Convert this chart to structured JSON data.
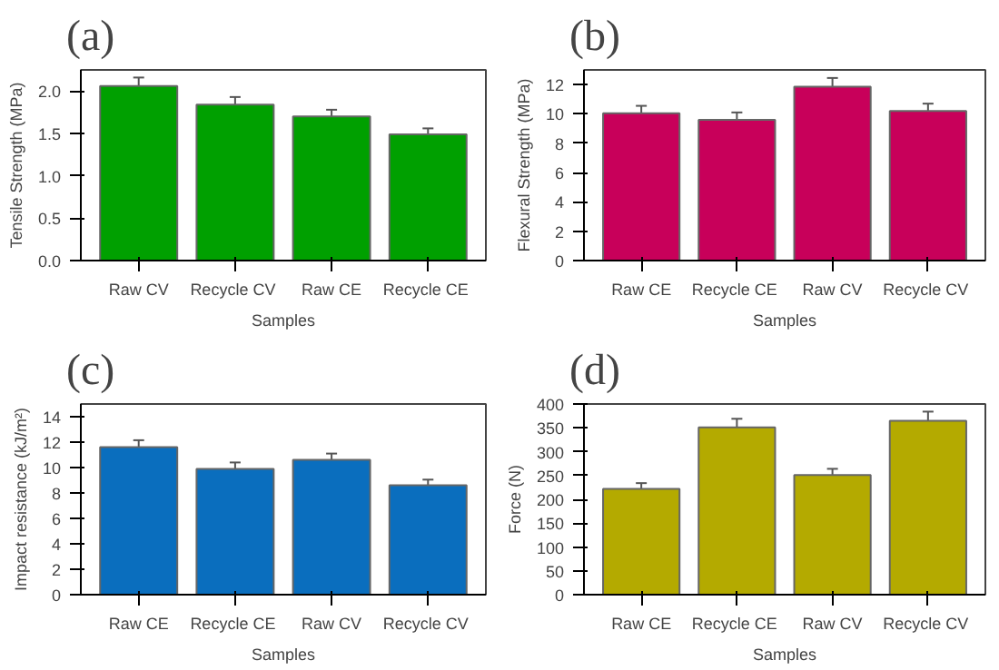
{
  "chart_data": [
    {
      "type": "bar",
      "title": "(a)",
      "xlabel": "Samples",
      "ylabel": "Tensile Strength (MPa)",
      "categories": [
        "Raw CV",
        "Recycle  CV",
        "Raw CE",
        "Recycle  CE"
      ],
      "values": [
        2.06,
        1.84,
        1.7,
        1.49
      ],
      "errors": [
        0.1,
        0.09,
        0.08,
        0.07
      ],
      "color": "#00a000",
      "ylim": [
        0,
        2.25
      ],
      "yticks": [
        {
          "value": 0,
          "label": "0.0"
        },
        0.5,
        {
          "value": 1,
          "label": "1.0"
        },
        1.5,
        {
          "value": 2,
          "label": "2.0"
        }
      ],
      "grid": false
    },
    {
      "type": "bar",
      "title": "(b)",
      "xlabel": "Samples",
      "ylabel": "Flexural Strength (MPa)",
      "categories": [
        "Raw CE",
        "Recycle  CE",
        "Raw CV",
        "Recycle  CV"
      ],
      "values": [
        10.05,
        9.6,
        11.85,
        10.2
      ],
      "errors": [
        0.5,
        0.5,
        0.6,
        0.5
      ],
      "color": "#c8005a",
      "ylim": [
        0,
        13
      ],
      "yticks": [
        0,
        2,
        4,
        6,
        8,
        10,
        12
      ],
      "grid": false
    },
    {
      "type": "bar",
      "title": "(c)",
      "xlabel": "Samples",
      "ylabel": "Impact resistance (kJ/m²)",
      "categories": [
        "Raw CE",
        "Recycle  CE",
        "Raw CV",
        "Recycle  CV"
      ],
      "values": [
        11.6,
        9.9,
        10.6,
        8.6
      ],
      "errors": [
        0.55,
        0.5,
        0.5,
        0.45
      ],
      "color": "#0a6ebe",
      "ylim": [
        0,
        15
      ],
      "yticks": [
        0,
        2,
        4,
        6,
        8,
        10,
        12,
        14
      ],
      "grid": false
    },
    {
      "type": "bar",
      "title": "(d)",
      "xlabel": "Samples",
      "ylabel": "Force (N)",
      "categories": [
        "Raw CE",
        "Recycle  CE",
        "Raw CV",
        "Recycle  CV"
      ],
      "values": [
        222,
        351,
        251,
        365
      ],
      "errors": [
        12,
        18,
        13,
        19
      ],
      "color": "#b4aa00",
      "ylim": [
        0,
        400
      ],
      "yticks": [
        0,
        50,
        100,
        150,
        200,
        250,
        300,
        350,
        400
      ],
      "grid": false
    }
  ]
}
